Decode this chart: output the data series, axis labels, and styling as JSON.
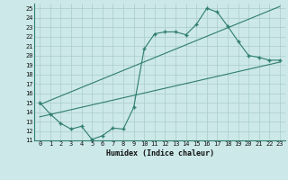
{
  "xlabel": "Humidex (Indice chaleur)",
  "ylabel": "",
  "bg_color": "#cce8e8",
  "grid_color": "#aacccc",
  "line_color": "#2e7d6e",
  "xlim": [
    -0.5,
    23.5
  ],
  "ylim": [
    11,
    25.5
  ],
  "yticks": [
    11,
    12,
    13,
    14,
    15,
    16,
    17,
    18,
    19,
    20,
    21,
    22,
    23,
    24,
    25
  ],
  "xticks": [
    0,
    1,
    2,
    3,
    4,
    5,
    6,
    7,
    8,
    9,
    10,
    11,
    12,
    13,
    14,
    15,
    16,
    17,
    18,
    19,
    20,
    21,
    22,
    23
  ],
  "main_x": [
    0,
    1,
    2,
    3,
    4,
    5,
    6,
    7,
    8,
    9,
    10,
    11,
    12,
    13,
    14,
    15,
    16,
    17,
    18,
    19,
    20,
    21,
    22,
    23
  ],
  "main_y": [
    15.0,
    13.8,
    12.8,
    12.2,
    12.5,
    11.1,
    11.5,
    12.3,
    12.2,
    14.5,
    20.7,
    22.3,
    22.5,
    22.5,
    22.2,
    23.3,
    25.0,
    24.6,
    23.1,
    21.5,
    20.0,
    19.8,
    19.5,
    19.5
  ],
  "line1_x": [
    0,
    23
  ],
  "line1_y": [
    13.5,
    19.3
  ],
  "line2_x": [
    0,
    23
  ],
  "line2_y": [
    14.8,
    25.2
  ]
}
